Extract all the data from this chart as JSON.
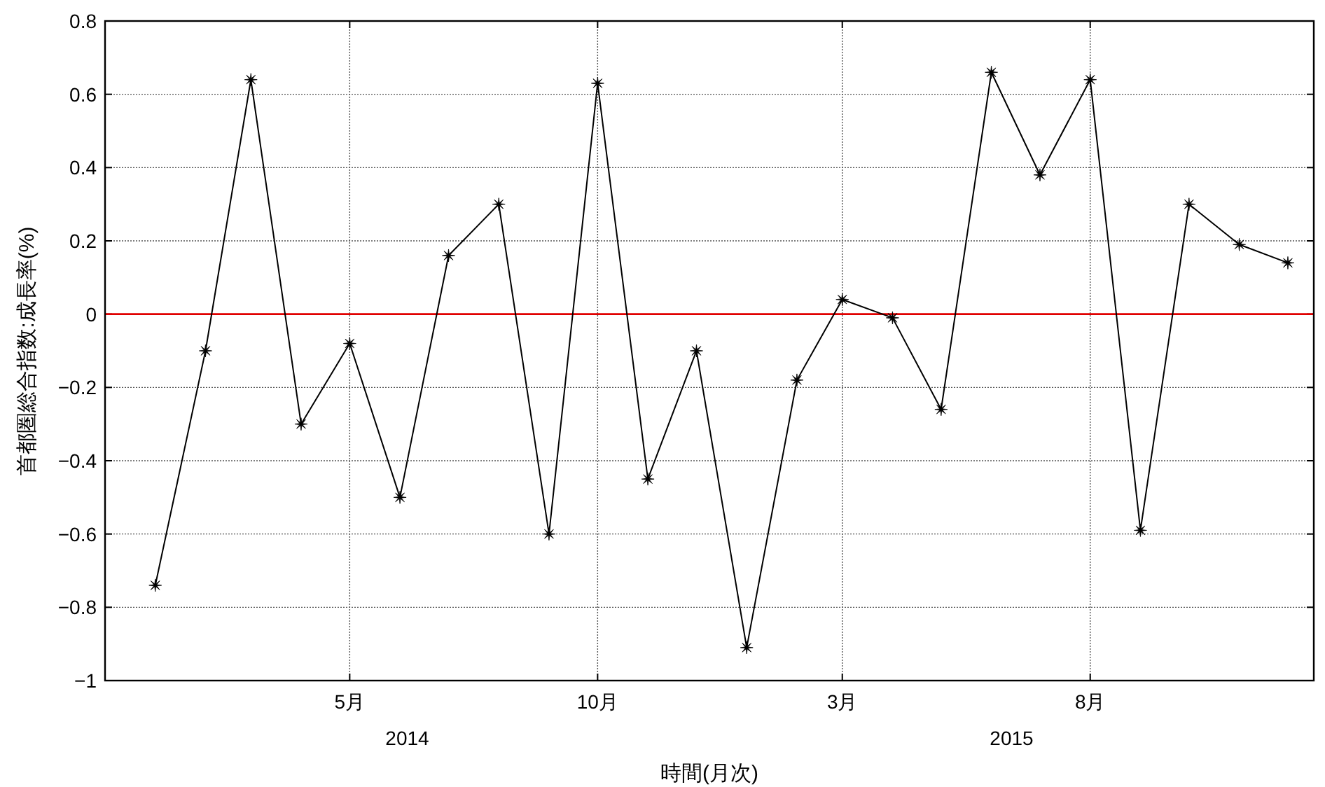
{
  "chart_data": {
    "type": "line",
    "xlabel": "時間(月次)",
    "ylabel": "首都圏総合指数:成長率(%)",
    "x": [
      "2014-01",
      "2014-02",
      "2014-03",
      "2014-04",
      "2014-05",
      "2014-06",
      "2014-07",
      "2014-08",
      "2014-09",
      "2014-10",
      "2014-11",
      "2014-12",
      "2015-01",
      "2015-02",
      "2015-03",
      "2015-04",
      "2015-05",
      "2015-06",
      "2015-07",
      "2015-08",
      "2015-09",
      "2015-10",
      "2015-11",
      "2015-12"
    ],
    "series": [
      {
        "color": "#000000",
        "values": [
          -0.74,
          -0.1,
          0.64,
          -0.3,
          -0.08,
          -0.5,
          0.16,
          0.3,
          -0.6,
          0.63,
          -0.45,
          -0.1,
          -0.91,
          -0.18,
          0.04,
          -0.01,
          -0.26,
          0.66,
          0.38,
          0.64,
          -0.59,
          0.3,
          0.19,
          0.14
        ]
      }
    ],
    "xlim": [
      "2013-12-01",
      "2015-12-17"
    ],
    "xticks": [
      {
        "value": "2014-05",
        "label": "5月"
      },
      {
        "value": "2014-10",
        "label": "10月"
      },
      {
        "value": "2015-03",
        "label": "3月"
      },
      {
        "value": "2015-08",
        "label": "8月"
      }
    ],
    "ylim": [
      -1,
      0.8
    ],
    "yticks": [
      {
        "value": -1,
        "label": "−1"
      },
      {
        "value": -0.8,
        "label": "−0.8"
      },
      {
        "value": -0.6,
        "label": "−0.6"
      },
      {
        "value": -0.4,
        "label": "−0.4"
      },
      {
        "value": -0.2,
        "label": "−0.2"
      },
      0,
      0.2,
      0.4,
      0.6,
      0.8
    ],
    "annotations": [
      "2014",
      "2015"
    ],
    "ref_lines": [
      {
        "axis": "y",
        "value": 0,
        "color": "#e00000"
      }
    ],
    "grid": true,
    "marker": "star",
    "line_style": "solid"
  }
}
